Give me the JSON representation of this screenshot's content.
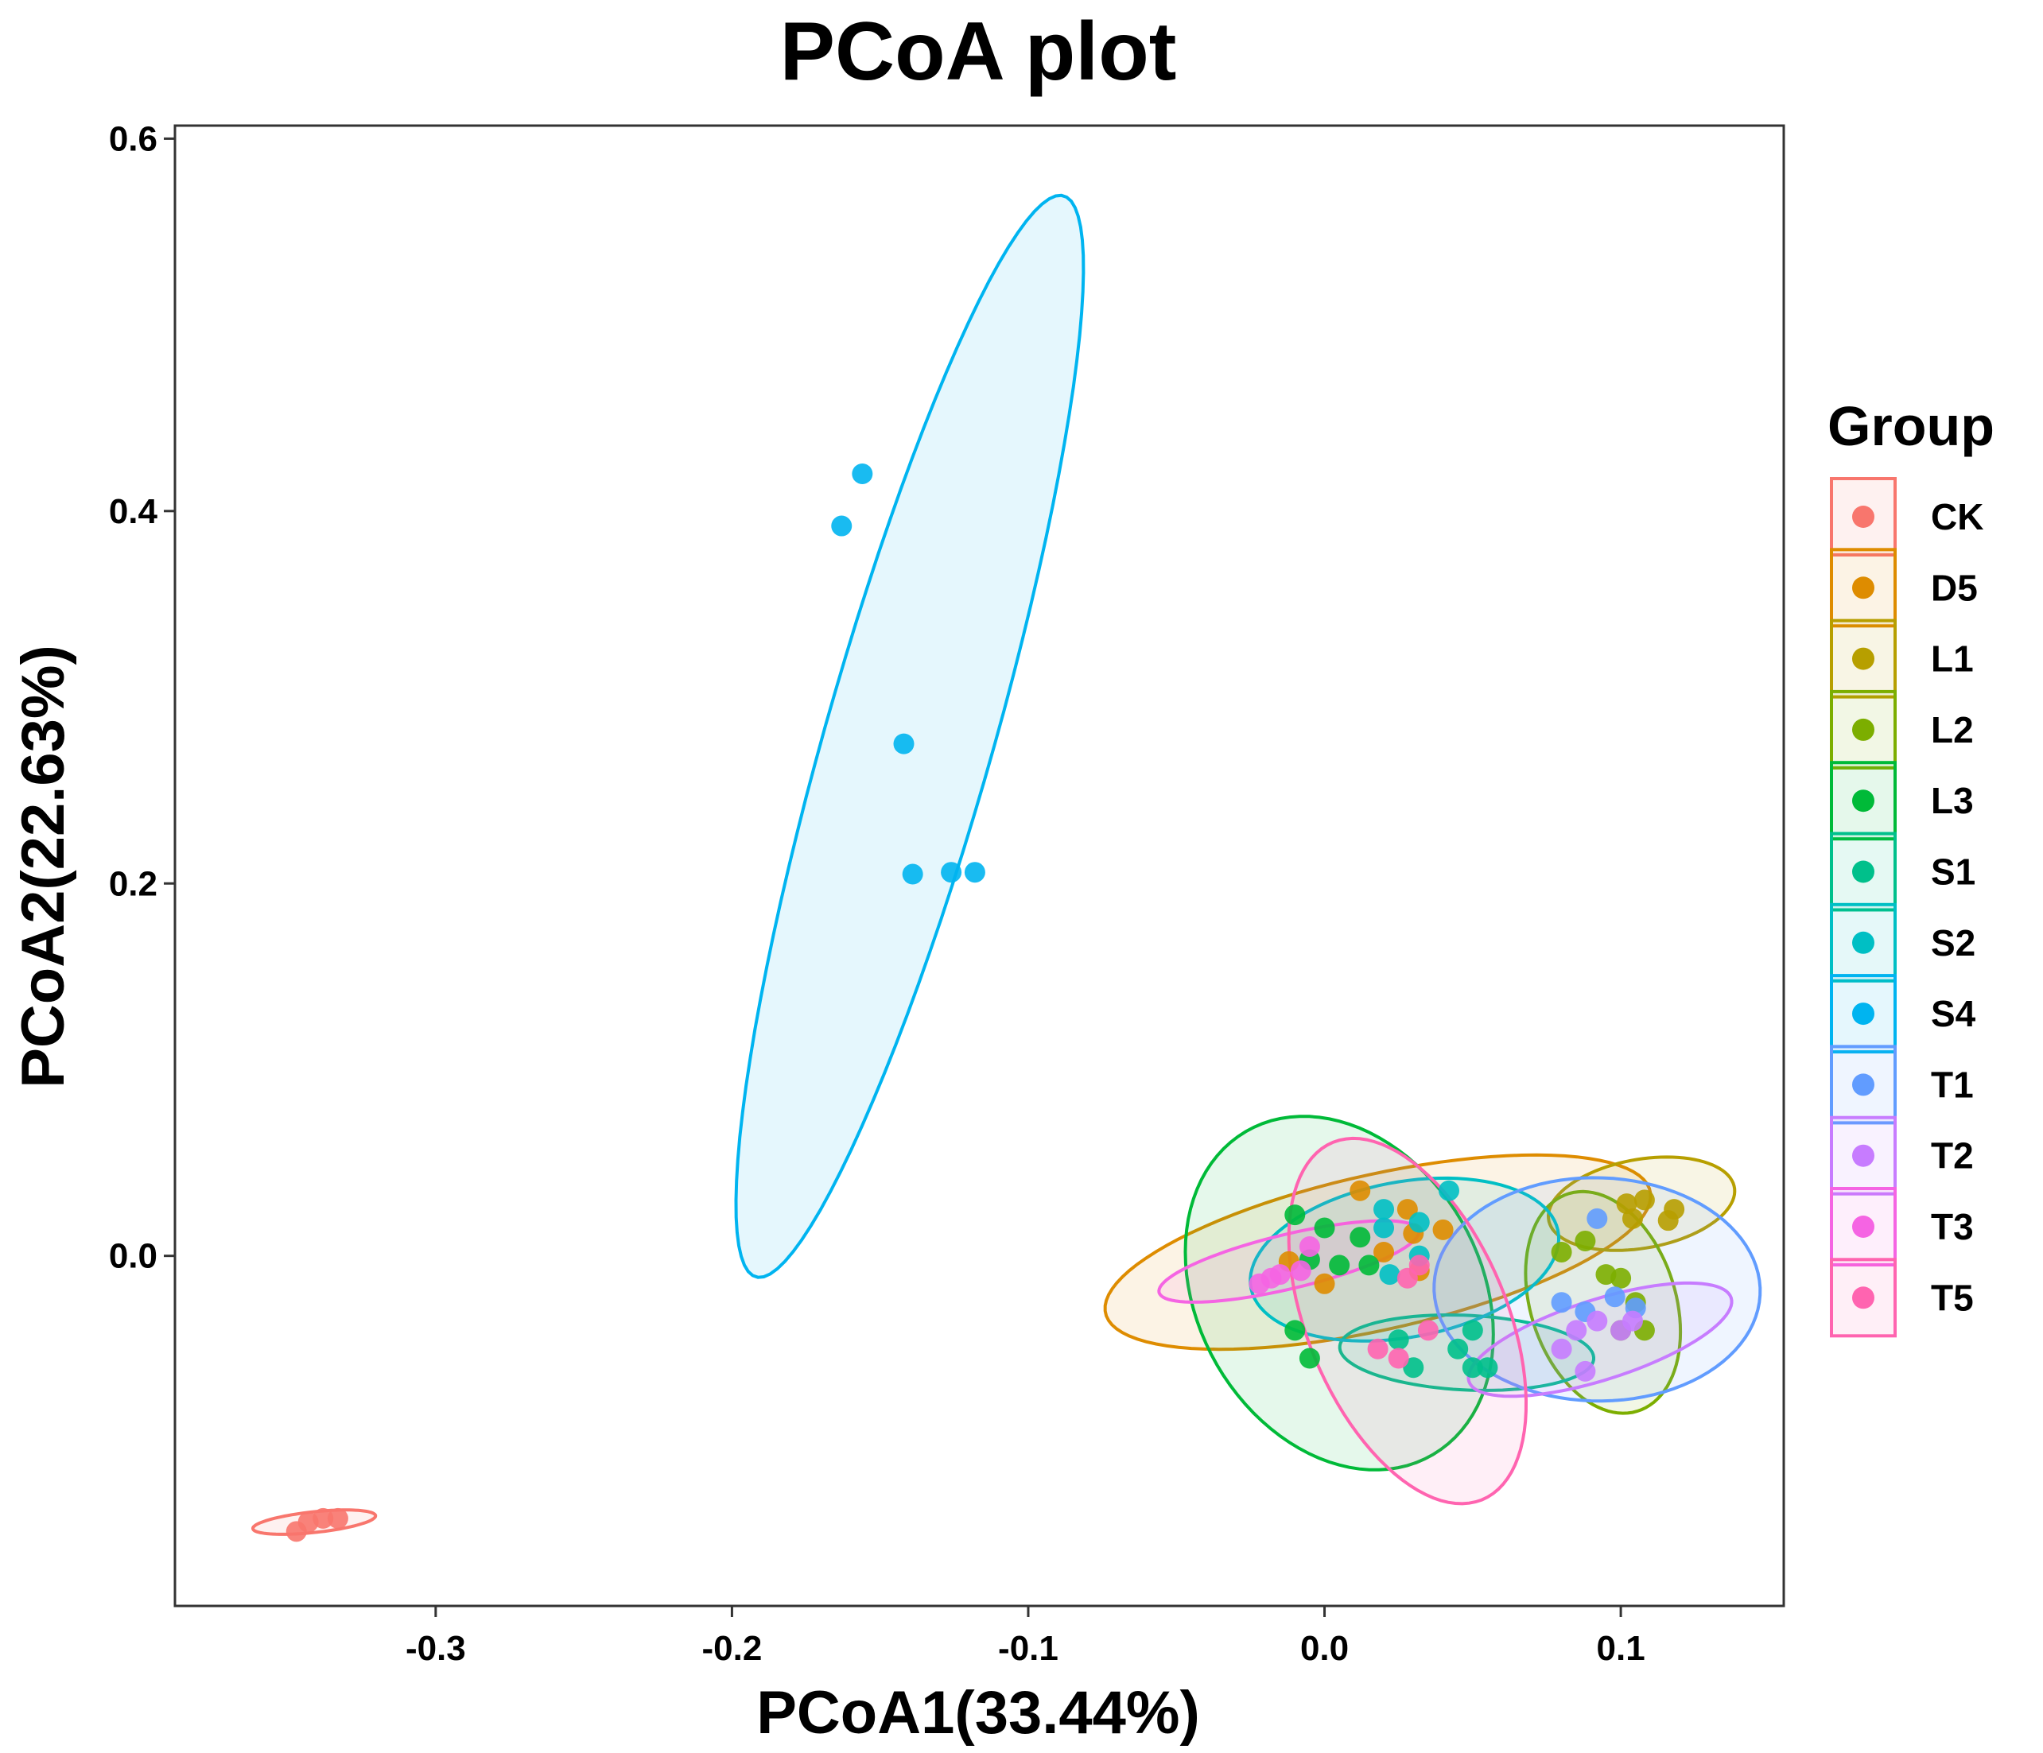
{
  "chart_data": {
    "type": "scatter",
    "title": "PCoA plot",
    "xlabel": "PCoA1(33.44%)",
    "ylabel": "PCoA2(22.63%)",
    "xlim": [
      -0.388,
      0.155
    ],
    "ylim": [
      -0.188,
      0.607
    ],
    "xticks": [
      -0.3,
      -0.2,
      -0.1,
      0.0,
      0.1
    ],
    "xtick_labels": [
      "-0.3",
      "-0.2",
      "-0.1",
      "0.0",
      "0.1"
    ],
    "yticks": [
      0.0,
      0.2,
      0.4,
      0.6
    ],
    "ytick_labels": [
      "0.0",
      "0.2",
      "0.4",
      "0.6"
    ],
    "grid": false,
    "legend": {
      "title": "Group",
      "position": "right"
    },
    "series": [
      {
        "name": "CK",
        "color": "#F8766D",
        "points": [
          [
            -0.347,
            -0.148
          ],
          [
            -0.343,
            -0.143
          ],
          [
            -0.338,
            -0.141
          ],
          [
            -0.333,
            -0.141
          ]
        ],
        "ellipse": {
          "cx": -0.341,
          "cy": -0.143,
          "rx": 0.021,
          "ry": 0.0055,
          "angle": 10
        }
      },
      {
        "name": "D5",
        "color": "#DE8C00",
        "points": [
          [
            0.012,
            0.035
          ],
          [
            0.028,
            0.025
          ],
          [
            0.03,
            0.012
          ],
          [
            0.02,
            0.002
          ],
          [
            0.0,
            -0.015
          ],
          [
            -0.012,
            -0.003
          ],
          [
            0.04,
            0.014
          ],
          [
            0.032,
            -0.008
          ]
        ],
        "ellipse": {
          "cx": 0.018,
          "cy": 0.002,
          "rx": 0.098,
          "ry": 0.04,
          "angle": 22
        }
      },
      {
        "name": "L1",
        "color": "#B79F00",
        "points": [
          [
            0.102,
            0.028
          ],
          [
            0.108,
            0.03
          ],
          [
            0.118,
            0.025
          ],
          [
            0.104,
            0.02
          ],
          [
            0.116,
            0.019
          ]
        ],
        "ellipse": {
          "cx": 0.107,
          "cy": 0.028,
          "rx": 0.033,
          "ry": 0.023,
          "angle": 25
        }
      },
      {
        "name": "L2",
        "color": "#7CAE00",
        "points": [
          [
            0.08,
            0.002
          ],
          [
            0.095,
            -0.01
          ],
          [
            0.1,
            -0.012
          ],
          [
            0.105,
            -0.025
          ],
          [
            0.1,
            -0.04
          ],
          [
            0.108,
            -0.04
          ],
          [
            0.088,
            0.008
          ]
        ],
        "ellipse": {
          "cx": 0.094,
          "cy": -0.025,
          "rx": 0.025,
          "ry": 0.06,
          "angle": 8
        }
      },
      {
        "name": "L3",
        "color": "#00BA38",
        "points": [
          [
            -0.01,
            0.022
          ],
          [
            0.0,
            0.015
          ],
          [
            0.012,
            0.01
          ],
          [
            0.005,
            -0.005
          ],
          [
            -0.005,
            -0.002
          ],
          [
            -0.01,
            -0.04
          ],
          [
            -0.005,
            -0.055
          ],
          [
            0.015,
            -0.005
          ]
        ],
        "ellipse": {
          "cx": 0.005,
          "cy": -0.02,
          "rx": 0.05,
          "ry": 0.096,
          "angle": 10
        }
      },
      {
        "name": "S1",
        "color": "#00C08B",
        "points": [
          [
            0.025,
            -0.045
          ],
          [
            0.03,
            -0.06
          ],
          [
            0.045,
            -0.05
          ],
          [
            0.05,
            -0.04
          ],
          [
            0.055,
            -0.06
          ],
          [
            0.05,
            -0.06
          ]
        ],
        "ellipse": {
          "cx": 0.048,
          "cy": -0.052,
          "rx": 0.043,
          "ry": 0.02,
          "angle": -5
        }
      },
      {
        "name": "S2",
        "color": "#00BFC4",
        "points": [
          [
            0.042,
            0.035
          ],
          [
            0.032,
            0.018
          ],
          [
            0.02,
            0.025
          ],
          [
            0.022,
            -0.01
          ],
          [
            0.032,
            0.0
          ],
          [
            0.02,
            0.015
          ]
        ],
        "ellipse": {
          "cx": 0.027,
          "cy": -0.002,
          "rx": 0.055,
          "ry": 0.04,
          "angle": 28
        }
      },
      {
        "name": "S4",
        "color": "#00B4F0",
        "points": [
          [
            -0.163,
            0.392
          ],
          [
            -0.156,
            0.42
          ],
          [
            -0.142,
            0.275
          ],
          [
            -0.139,
            0.205
          ],
          [
            -0.126,
            0.206
          ],
          [
            -0.118,
            0.206
          ]
        ],
        "ellipse": {
          "cx": -0.14,
          "cy": 0.279,
          "rx": 0.295,
          "ry": 0.029,
          "angle": 80
        }
      },
      {
        "name": "T1",
        "color": "#619CFF",
        "points": [
          [
            0.092,
            0.02
          ],
          [
            0.08,
            -0.025
          ],
          [
            0.088,
            -0.03
          ],
          [
            0.098,
            -0.022
          ],
          [
            0.105,
            -0.028
          ]
        ],
        "ellipse": {
          "cx": 0.092,
          "cy": -0.018,
          "rx": 0.055,
          "ry": 0.06,
          "angle": 5
        }
      },
      {
        "name": "T2",
        "color": "#C77CFF",
        "points": [
          [
            0.085,
            -0.04
          ],
          [
            0.092,
            -0.035
          ],
          [
            0.1,
            -0.04
          ],
          [
            0.104,
            -0.035
          ],
          [
            0.08,
            -0.05
          ],
          [
            0.088,
            -0.062
          ]
        ],
        "ellipse": {
          "cx": 0.093,
          "cy": -0.045,
          "rx": 0.05,
          "ry": 0.02,
          "angle": 30
        }
      },
      {
        "name": "T3",
        "color": "#F564E3",
        "points": [
          [
            -0.022,
            -0.015
          ],
          [
            -0.015,
            -0.01
          ],
          [
            -0.005,
            0.005
          ],
          [
            -0.008,
            -0.008
          ],
          [
            -0.018,
            -0.012
          ]
        ],
        "ellipse": {
          "cx": -0.012,
          "cy": -0.003,
          "rx": 0.047,
          "ry": 0.014,
          "angle": 22
        }
      },
      {
        "name": "T5",
        "color": "#FF64B0",
        "points": [
          [
            0.035,
            -0.04
          ],
          [
            0.025,
            -0.055
          ],
          [
            0.018,
            -0.05
          ],
          [
            0.028,
            -0.012
          ],
          [
            0.032,
            -0.005
          ]
        ],
        "ellipse": {
          "cx": 0.028,
          "cy": -0.035,
          "rx": 0.035,
          "ry": 0.1,
          "angle": 12
        }
      }
    ]
  }
}
